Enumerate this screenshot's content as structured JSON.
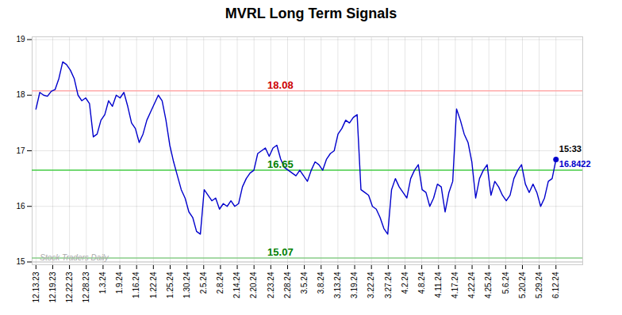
{
  "chart_data": {
    "type": "line",
    "title": "MVRL Long Term Signals",
    "color": "#0000cc",
    "grid": true,
    "x": [
      0,
      1,
      2,
      3,
      4,
      5,
      6,
      7,
      8,
      9,
      10,
      11,
      12,
      13,
      14,
      15,
      16,
      17,
      18,
      19,
      20,
      21,
      22,
      23,
      24,
      25,
      26,
      27,
      28,
      29,
      30,
      31,
      32,
      33,
      34,
      35,
      36,
      37,
      38,
      39,
      40,
      41,
      42,
      43,
      44,
      45,
      46,
      47,
      48,
      49,
      50,
      51,
      52,
      53,
      54,
      55,
      56,
      57,
      58,
      59,
      60,
      61,
      62,
      63,
      64,
      65,
      66,
      67,
      68,
      69,
      70,
      71,
      72,
      73,
      74,
      75,
      76,
      77,
      78,
      79,
      80,
      81,
      82,
      83,
      84,
      85,
      86,
      87,
      88,
      89,
      90,
      91,
      92,
      93,
      94,
      95,
      96,
      97,
      98,
      99,
      100,
      101,
      102,
      103,
      104,
      105,
      106,
      107,
      108,
      109,
      110,
      111,
      112,
      113,
      114,
      115,
      116,
      117,
      118,
      119,
      120,
      121,
      122,
      123,
      124,
      125,
      126,
      127,
      128,
      129,
      130,
      131,
      132,
      133,
      134,
      135,
      136
    ],
    "values": [
      17.75,
      18.05,
      18.0,
      17.98,
      18.07,
      18.1,
      18.3,
      18.6,
      18.55,
      18.45,
      18.3,
      18.0,
      17.9,
      17.95,
      17.85,
      17.25,
      17.3,
      17.55,
      17.65,
      17.9,
      17.8,
      18.0,
      17.95,
      18.05,
      17.8,
      17.5,
      17.4,
      17.15,
      17.3,
      17.55,
      17.7,
      17.85,
      18.0,
      17.9,
      17.55,
      17.1,
      16.8,
      16.55,
      16.3,
      16.15,
      15.9,
      15.8,
      15.55,
      15.5,
      16.3,
      16.2,
      16.1,
      16.15,
      15.95,
      16.05,
      16.0,
      16.1,
      16.0,
      16.05,
      16.35,
      16.5,
      16.6,
      16.65,
      16.95,
      17.0,
      17.05,
      16.9,
      17.05,
      17.1,
      16.85,
      16.7,
      16.65,
      16.6,
      16.55,
      16.65,
      16.55,
      16.45,
      16.65,
      16.8,
      16.75,
      16.65,
      16.85,
      16.95,
      17.0,
      17.3,
      17.4,
      17.55,
      17.5,
      17.6,
      17.65,
      16.3,
      16.25,
      16.2,
      16.0,
      15.95,
      15.8,
      15.6,
      15.5,
      16.3,
      16.5,
      16.35,
      16.25,
      16.15,
      16.5,
      16.65,
      16.75,
      16.3,
      16.25,
      16.0,
      16.15,
      16.4,
      16.35,
      15.9,
      16.25,
      16.45,
      17.75,
      17.55,
      17.3,
      17.15,
      16.8,
      16.15,
      16.5,
      16.65,
      16.75,
      16.2,
      16.45,
      16.35,
      16.2,
      16.1,
      16.2,
      16.5,
      16.65,
      16.75,
      16.4,
      16.25,
      16.4,
      16.25,
      16.0,
      16.15,
      16.45,
      16.5,
      16.8422
    ],
    "xlim": [
      -1,
      143
    ],
    "xticks": [
      {
        "value": 0,
        "label": "12.13.23"
      },
      {
        "value": 4.387097,
        "label": "12.19.23"
      },
      {
        "value": 8.774194,
        "label": "12.22.23"
      },
      {
        "value": 13.16129,
        "label": "12.28.23"
      },
      {
        "value": 17.548387,
        "label": "1.3.24"
      },
      {
        "value": 21.935484,
        "label": "1.9.24"
      },
      {
        "value": 26.322581,
        "label": "1.16.24"
      },
      {
        "value": 30.709677,
        "label": "1.22.24"
      },
      {
        "value": 35.096774,
        "label": "1.25.24"
      },
      {
        "value": 39.483871,
        "label": "1.30.24"
      },
      {
        "value": 43.870968,
        "label": "2.5.24"
      },
      {
        "value": 48.258065,
        "label": "2.8.24"
      },
      {
        "value": 52.645161,
        "label": "2.14.24"
      },
      {
        "value": 57.032258,
        "label": "2.20.24"
      },
      {
        "value": 61.419355,
        "label": "2.23.24"
      },
      {
        "value": 65.806452,
        "label": "2.28.24"
      },
      {
        "value": 70.193548,
        "label": "3.5.24"
      },
      {
        "value": 74.580645,
        "label": "3.8.24"
      },
      {
        "value": 78.967742,
        "label": "3.13.24"
      },
      {
        "value": 83.354839,
        "label": "3.19.24"
      },
      {
        "value": 87.741935,
        "label": "3.22.24"
      },
      {
        "value": 92.129032,
        "label": "3.27.24"
      },
      {
        "value": 96.516129,
        "label": "4.2.24"
      },
      {
        "value": 100.903226,
        "label": "4.8.24"
      },
      {
        "value": 105.290323,
        "label": "4.11.24"
      },
      {
        "value": 109.677419,
        "label": "4.17.24"
      },
      {
        "value": 114.064516,
        "label": "4.22.24"
      },
      {
        "value": 118.451613,
        "label": "4.25.24"
      },
      {
        "value": 122.83871,
        "label": "5.6.24"
      },
      {
        "value": 127.225806,
        "label": "5.20.24"
      },
      {
        "value": 131.612903,
        "label": "5.29.24"
      },
      {
        "value": 136,
        "label": "6.12.24"
      }
    ],
    "ylim": [
      14.95,
      19.05
    ],
    "yticks": [
      15,
      16,
      17,
      18,
      19
    ],
    "reference_lines": [
      {
        "value": 18.08,
        "label": "18.08",
        "color": "#ffaaaa",
        "label_color": "#cc0000"
      },
      {
        "value": 16.65,
        "label": "16.65",
        "color": "#44cc44",
        "label_color": "green"
      },
      {
        "value": 15.07,
        "label": "15.07",
        "color": "#88cc88",
        "label_color": "green"
      }
    ],
    "watermark": {
      "text": "Stock Traders Daily",
      "value": 15.0,
      "color": "#aaaaaa",
      "line_color": "#bbbbbb"
    },
    "annotations": [
      {
        "text": "15:33",
        "x": 136,
        "y": 16.8422,
        "color": "black"
      },
      {
        "text": "16.8422",
        "x": 136,
        "y": 16.8422,
        "color": "#0000cc"
      }
    ]
  }
}
